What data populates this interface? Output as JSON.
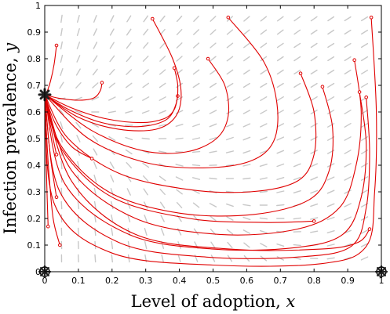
{
  "chart_data": {
    "type": "line",
    "title": "",
    "xlabel": "Level of adoption,",
    "xlabel_var": "x",
    "ylabel": "Infection prevalence,",
    "ylabel_var": "y",
    "xlim": [
      0,
      1
    ],
    "ylim": [
      0,
      1
    ],
    "x_ticks": [
      "0",
      "0.1",
      "0.2",
      "0.3",
      "0.4",
      "0.5",
      "0.6",
      "0.7",
      "0.8",
      "0.9",
      "1"
    ],
    "y_ticks": [
      "0",
      "0.1",
      "0.2",
      "0.3",
      "0.4",
      "0.5",
      "0.6",
      "0.7",
      "0.8",
      "0.9",
      "1"
    ],
    "grid": false,
    "vector_field": {
      "color": "#c8c8c8"
    },
    "trajectory_color": "#e00000",
    "equilibria": [
      {
        "x": 0,
        "y": 0.665,
        "type": "stable"
      },
      {
        "x": 0,
        "y": 0,
        "type": "unstable"
      },
      {
        "x": 1,
        "y": 0,
        "type": "unstable"
      }
    ],
    "trajectories": [
      {
        "start": [
          0.035,
          0.85
        ],
        "points": [
          [
            0.035,
            0.85
          ],
          [
            0.028,
            0.78
          ],
          [
            0.018,
            0.72
          ],
          [
            0.008,
            0.68
          ],
          [
            0,
            0.665
          ]
        ]
      },
      {
        "start": [
          0.17,
          0.71
        ],
        "points": [
          [
            0.17,
            0.71
          ],
          [
            0.165,
            0.68
          ],
          [
            0.145,
            0.652
          ],
          [
            0.1,
            0.644
          ],
          [
            0.04,
            0.652
          ],
          [
            0,
            0.665
          ]
        ]
      },
      {
        "start": [
          0.395,
          0.66
        ],
        "points": [
          [
            0.395,
            0.66
          ],
          [
            0.385,
            0.61
          ],
          [
            0.355,
            0.575
          ],
          [
            0.285,
            0.56
          ],
          [
            0.18,
            0.575
          ],
          [
            0.08,
            0.615
          ],
          [
            0,
            0.665
          ]
        ]
      },
      {
        "start": [
          0.385,
          0.765
        ],
        "points": [
          [
            0.385,
            0.765
          ],
          [
            0.395,
            0.7
          ],
          [
            0.39,
            0.63
          ],
          [
            0.36,
            0.57
          ],
          [
            0.28,
            0.545
          ],
          [
            0.17,
            0.56
          ],
          [
            0.07,
            0.61
          ],
          [
            0,
            0.665
          ]
        ]
      },
      {
        "start": [
          0.32,
          0.95
        ],
        "points": [
          [
            0.32,
            0.95
          ],
          [
            0.38,
            0.8
          ],
          [
            0.405,
            0.68
          ],
          [
            0.39,
            0.585
          ],
          [
            0.33,
            0.535
          ],
          [
            0.22,
            0.535
          ],
          [
            0.1,
            0.58
          ],
          [
            0,
            0.665
          ]
        ]
      },
      {
        "start": [
          0.485,
          0.8
        ],
        "points": [
          [
            0.485,
            0.8
          ],
          [
            0.535,
            0.7
          ],
          [
            0.545,
            0.585
          ],
          [
            0.51,
            0.5
          ],
          [
            0.42,
            0.45
          ],
          [
            0.29,
            0.455
          ],
          [
            0.14,
            0.53
          ],
          [
            0,
            0.665
          ]
        ]
      },
      {
        "start": [
          0.545,
          0.955
        ],
        "points": [
          [
            0.545,
            0.955
          ],
          [
            0.65,
            0.79
          ],
          [
            0.69,
            0.63
          ],
          [
            0.68,
            0.49
          ],
          [
            0.61,
            0.415
          ],
          [
            0.47,
            0.39
          ],
          [
            0.3,
            0.41
          ],
          [
            0.13,
            0.5
          ],
          [
            0,
            0.665
          ]
        ]
      },
      {
        "start": [
          0.76,
          0.745
        ],
        "points": [
          [
            0.76,
            0.745
          ],
          [
            0.8,
            0.6
          ],
          [
            0.8,
            0.44
          ],
          [
            0.75,
            0.34
          ],
          [
            0.61,
            0.3
          ],
          [
            0.42,
            0.31
          ],
          [
            0.22,
            0.37
          ],
          [
            0.07,
            0.5
          ],
          [
            0,
            0.665
          ]
        ]
      },
      {
        "start": [
          0.825,
          0.695
        ],
        "points": [
          [
            0.825,
            0.695
          ],
          [
            0.855,
            0.54
          ],
          [
            0.845,
            0.38
          ],
          [
            0.785,
            0.27
          ],
          [
            0.62,
            0.215
          ],
          [
            0.4,
            0.22
          ],
          [
            0.19,
            0.3
          ],
          [
            0.05,
            0.47
          ],
          [
            0,
            0.665
          ]
        ]
      },
      {
        "start": [
          0.92,
          0.795
        ],
        "points": [
          [
            0.92,
            0.795
          ],
          [
            0.94,
            0.6
          ],
          [
            0.925,
            0.4
          ],
          [
            0.875,
            0.24
          ],
          [
            0.75,
            0.16
          ],
          [
            0.52,
            0.14
          ],
          [
            0.27,
            0.2
          ],
          [
            0.08,
            0.38
          ],
          [
            0,
            0.665
          ]
        ]
      },
      {
        "start": [
          0.935,
          0.675
        ],
        "points": [
          [
            0.935,
            0.675
          ],
          [
            0.955,
            0.48
          ],
          [
            0.94,
            0.28
          ],
          [
            0.885,
            0.14
          ],
          [
            0.74,
            0.09
          ],
          [
            0.5,
            0.085
          ],
          [
            0.25,
            0.14
          ],
          [
            0.06,
            0.33
          ],
          [
            0,
            0.665
          ]
        ]
      },
      {
        "start": [
          0.955,
          0.655
        ],
        "points": [
          [
            0.955,
            0.655
          ],
          [
            0.965,
            0.45
          ],
          [
            0.955,
            0.24
          ],
          [
            0.91,
            0.095
          ],
          [
            0.75,
            0.055
          ],
          [
            0.48,
            0.055
          ],
          [
            0.22,
            0.11
          ],
          [
            0.045,
            0.3
          ],
          [
            0,
            0.665
          ]
        ]
      },
      {
        "start": [
          0.97,
          0.955
        ],
        "points": [
          [
            0.97,
            0.955
          ],
          [
            0.985,
            0.6
          ],
          [
            0.98,
            0.3
          ],
          [
            0.955,
            0.095
          ],
          [
            0.82,
            0.03
          ],
          [
            0.5,
            0.025
          ],
          [
            0.2,
            0.07
          ],
          [
            0.03,
            0.25
          ],
          [
            0,
            0.665
          ]
        ]
      },
      {
        "start": [
          0.965,
          0.16
        ],
        "points": [
          [
            0.965,
            0.16
          ],
          [
            0.93,
            0.11
          ],
          [
            0.82,
            0.085
          ],
          [
            0.55,
            0.085
          ],
          [
            0.27,
            0.14
          ],
          [
            0.08,
            0.34
          ],
          [
            0,
            0.665
          ]
        ]
      },
      {
        "start": [
          0.8,
          0.19
        ],
        "points": [
          [
            0.8,
            0.19
          ],
          [
            0.65,
            0.185
          ],
          [
            0.43,
            0.2
          ],
          [
            0.2,
            0.28
          ],
          [
            0.05,
            0.46
          ],
          [
            0,
            0.665
          ]
        ]
      },
      {
        "start": [
          0.14,
          0.425
        ],
        "points": [
          [
            0.14,
            0.425
          ],
          [
            0.08,
            0.47
          ],
          [
            0.03,
            0.56
          ],
          [
            0,
            0.665
          ]
        ]
      },
      {
        "start": [
          0.035,
          0.44
        ],
        "points": [
          [
            0.035,
            0.44
          ],
          [
            0.02,
            0.53
          ],
          [
            0.008,
            0.61
          ],
          [
            0,
            0.665
          ]
        ]
      },
      {
        "start": [
          0.035,
          0.28
        ],
        "points": [
          [
            0.035,
            0.28
          ],
          [
            0.018,
            0.42
          ],
          [
            0.007,
            0.56
          ],
          [
            0,
            0.665
          ]
        ]
      },
      {
        "start": [
          0.045,
          0.1
        ],
        "points": [
          [
            0.045,
            0.1
          ],
          [
            0.025,
            0.2
          ],
          [
            0.012,
            0.38
          ],
          [
            0.004,
            0.55
          ],
          [
            0,
            0.665
          ]
        ]
      },
      {
        "start": [
          0.01,
          0.17
        ],
        "points": [
          [
            0.01,
            0.17
          ],
          [
            0.006,
            0.33
          ],
          [
            0.003,
            0.5
          ],
          [
            0,
            0.665
          ]
        ]
      }
    ]
  }
}
